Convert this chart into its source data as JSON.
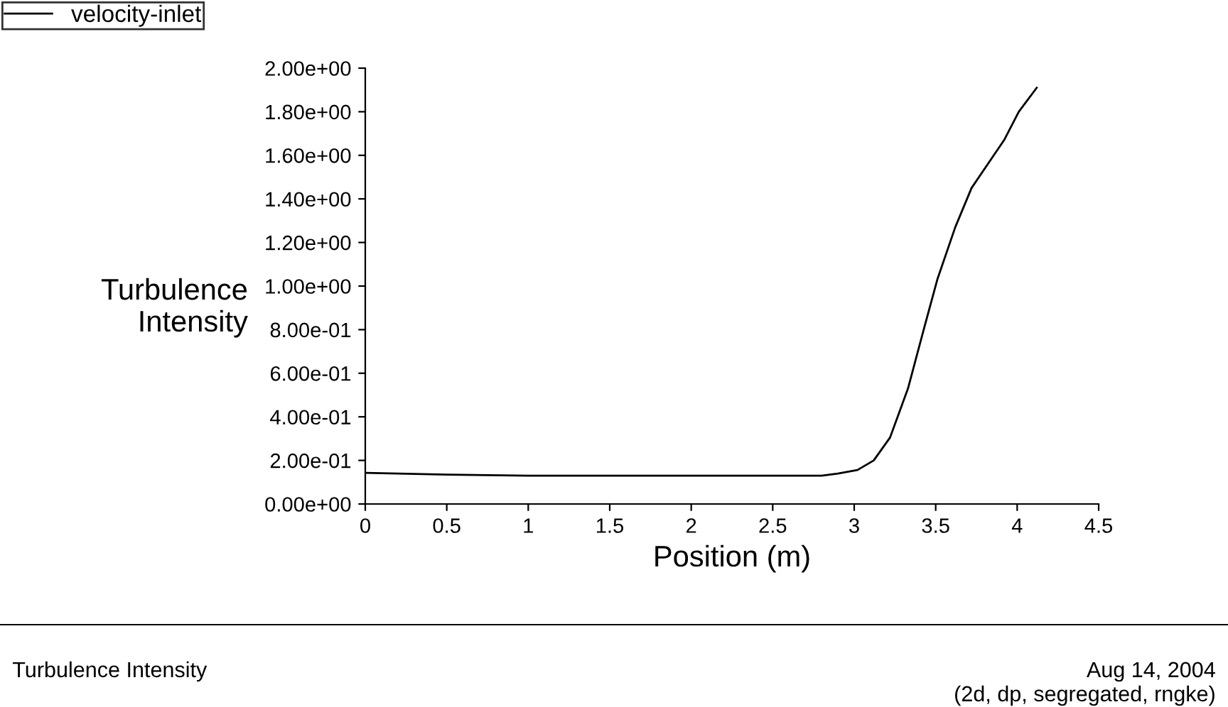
{
  "chart_data": {
    "type": "line",
    "xlabel": "Position (m)",
    "ylabel": "Turbulence\nIntensity",
    "series": [
      {
        "name": "velocity-inlet",
        "color": "#000000",
        "x": [
          0,
          0.5,
          1,
          1.5,
          2,
          2.5,
          2.64,
          2.8,
          2.9,
          3.02,
          3.12,
          3.22,
          3.33,
          3.43,
          3.51,
          3.62,
          3.72,
          3.92,
          4.01,
          4.12
        ],
        "values": [
          0.143,
          0.135,
          0.13,
          0.13,
          0.13,
          0.13,
          0.13,
          0.13,
          0.14,
          0.156,
          0.2,
          0.305,
          0.53,
          0.81,
          1.03,
          1.27,
          1.45,
          1.67,
          1.8,
          1.91
        ]
      }
    ],
    "xlim": [
      0,
      4.5
    ],
    "xticks": [
      0,
      0.5,
      1,
      1.5,
      2,
      2.5,
      3,
      3.5,
      4,
      4.5
    ],
    "ylim": [
      0,
      2
    ],
    "yticks": [
      {
        "value": 0,
        "label": "0.00e+00"
      },
      {
        "value": 0.2,
        "label": "2.00e-01"
      },
      {
        "value": 0.4,
        "label": "4.00e-01"
      },
      {
        "value": 0.6,
        "label": "6.00e-01"
      },
      {
        "value": 0.8,
        "label": "8.00e-01"
      },
      {
        "value": 1.0,
        "label": "1.00e+00"
      },
      {
        "value": 1.2,
        "label": "1.20e+00"
      },
      {
        "value": 1.4,
        "label": "1.40e+00"
      },
      {
        "value": 1.6,
        "label": "1.60e+00"
      },
      {
        "value": 1.8,
        "label": "1.80e+00"
      },
      {
        "value": 2.0,
        "label": "2.00e+00"
      }
    ],
    "grid": false,
    "legend": "top left",
    "marker": "none",
    "line_style": "solid",
    "annotations": [
      "Turbulence Intensity",
      "Aug 14, 2004",
      "(2d, dp, segregated, rngke)"
    ]
  }
}
